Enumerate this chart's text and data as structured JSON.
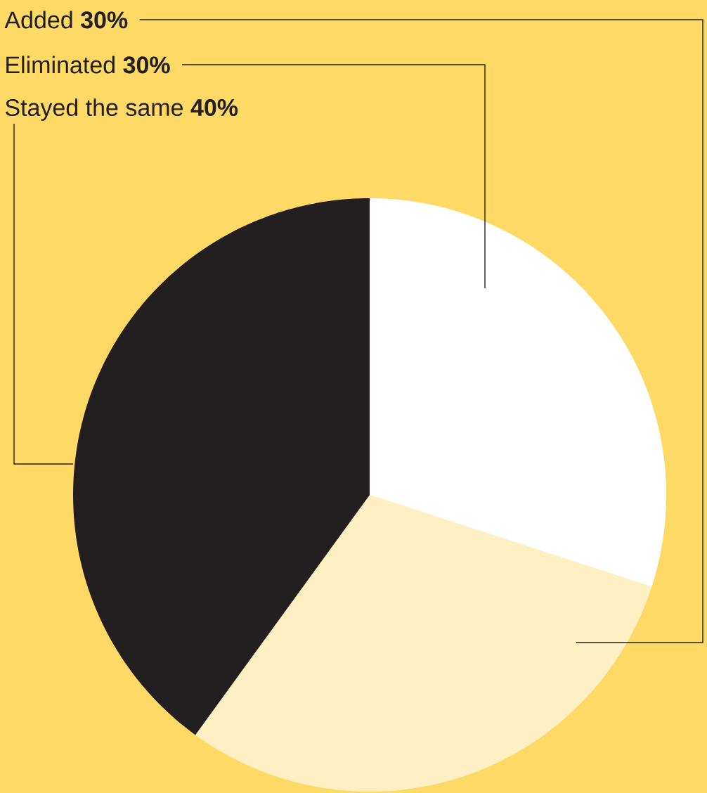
{
  "chart_data": {
    "type": "pie",
    "categories": [
      "Added",
      "Eliminated",
      "Stayed the same"
    ],
    "values": [
      30,
      30,
      40
    ],
    "colors": [
      "#fff0c4",
      "#ffffff",
      "#231f20"
    ],
    "value_labels": [
      "30%",
      "30%",
      "40%"
    ]
  }
}
